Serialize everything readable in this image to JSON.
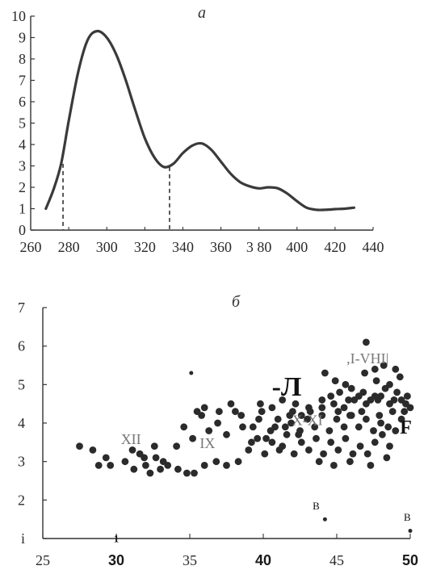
{
  "chart_data": [
    {
      "type": "line",
      "panel_label": "a",
      "xlim": [
        260,
        440
      ],
      "ylim": [
        0,
        10
      ],
      "x_tick_labels": [
        "260",
        "280",
        "300",
        "320",
        "340",
        "360",
        "3 80",
        "400",
        "420",
        "440"
      ],
      "y_tick_labels": [
        "0",
        "1",
        "2",
        "3",
        "4",
        "5",
        "6",
        "7",
        "8",
        "9",
        "10"
      ],
      "x": [
        268,
        272,
        276,
        280,
        285,
        290,
        295,
        300,
        305,
        310,
        315,
        320,
        325,
        330,
        335,
        340,
        345,
        350,
        355,
        360,
        365,
        370,
        375,
        380,
        385,
        390,
        395,
        400,
        405,
        410,
        415,
        420,
        425,
        430
      ],
      "y": [
        1.0,
        1.9,
        3.1,
        5.1,
        7.4,
        8.9,
        9.3,
        9.0,
        8.2,
        7.0,
        5.6,
        4.3,
        3.4,
        2.95,
        3.1,
        3.6,
        3.95,
        4.05,
        3.75,
        3.2,
        2.65,
        2.25,
        2.05,
        1.95,
        2.0,
        1.95,
        1.7,
        1.35,
        1.05,
        0.95,
        0.95,
        0.98,
        1.0,
        1.05
      ],
      "markers": [
        {
          "x": 277,
          "y": 3.1
        },
        {
          "x": 333,
          "y": 2.95
        }
      ]
    },
    {
      "type": "scatter",
      "panel_label": "б",
      "xlim": [
        25,
        50
      ],
      "ylim": [
        1,
        7
      ],
      "x_tick_labels": [
        "25",
        "30",
        "35",
        "40",
        "45",
        "50"
      ],
      "y_tick_labels": [
        "i",
        "2",
        "3",
        "4",
        "5",
        "6",
        "7"
      ],
      "groups": [
        "XII",
        "IX",
        "X-XI",
        ",I-VHI|"
      ],
      "annotations": [
        "-Л",
        "F",
        "В",
        "В",
        "1"
      ],
      "points": [
        [
          27.5,
          3.4
        ],
        [
          28.4,
          3.3
        ],
        [
          28.8,
          2.9
        ],
        [
          29.3,
          3.1
        ],
        [
          29.6,
          2.9
        ],
        [
          30.6,
          3.0
        ],
        [
          31.2,
          2.8
        ],
        [
          31.6,
          3.2
        ],
        [
          32.0,
          2.9
        ],
        [
          32.3,
          2.7
        ],
        [
          32.7,
          3.1
        ],
        [
          33.0,
          2.8
        ],
        [
          33.5,
          2.9
        ],
        [
          34.2,
          2.8
        ],
        [
          34.8,
          2.7
        ],
        [
          35.3,
          2.7
        ],
        [
          36.0,
          2.9
        ],
        [
          36.8,
          3.0
        ],
        [
          37.5,
          2.9
        ],
        [
          38.3,
          3.0
        ],
        [
          31.1,
          3.3
        ],
        [
          31.9,
          3.1
        ],
        [
          32.6,
          3.4
        ],
        [
          33.2,
          3.0
        ],
        [
          34.1,
          3.4
        ],
        [
          34.6,
          3.9
        ],
        [
          35.2,
          3.6
        ],
        [
          35.8,
          4.2
        ],
        [
          36.3,
          3.8
        ],
        [
          36.9,
          4.0
        ],
        [
          37.5,
          3.7
        ],
        [
          38.1,
          4.3
        ],
        [
          38.6,
          3.9
        ],
        [
          39.2,
          3.5
        ],
        [
          39.7,
          4.1
        ],
        [
          40.2,
          3.6
        ],
        [
          40.8,
          3.9
        ],
        [
          41.3,
          3.4
        ],
        [
          41.9,
          4.0
        ],
        [
          42.4,
          3.7
        ],
        [
          39.0,
          3.3
        ],
        [
          39.6,
          3.6
        ],
        [
          40.1,
          3.2
        ],
        [
          40.6,
          3.5
        ],
        [
          41.1,
          3.3
        ],
        [
          41.6,
          3.7
        ],
        [
          42.1,
          3.2
        ],
        [
          42.6,
          3.5
        ],
        [
          43.1,
          3.3
        ],
        [
          43.6,
          3.6
        ],
        [
          44.1,
          3.2
        ],
        [
          44.6,
          3.5
        ],
        [
          45.1,
          3.3
        ],
        [
          45.6,
          3.6
        ],
        [
          46.1,
          3.2
        ],
        [
          46.6,
          3.4
        ],
        [
          47.1,
          3.2
        ],
        [
          47.6,
          3.5
        ],
        [
          48.1,
          3.7
        ],
        [
          48.6,
          3.4
        ],
        [
          39.3,
          3.9
        ],
        [
          39.9,
          4.3
        ],
        [
          40.5,
          3.8
        ],
        [
          41.0,
          4.1
        ],
        [
          41.5,
          3.9
        ],
        [
          42.0,
          4.3
        ],
        [
          42.5,
          3.8
        ],
        [
          43.0,
          4.1
        ],
        [
          43.5,
          3.9
        ],
        [
          44.0,
          4.2
        ],
        [
          44.5,
          3.8
        ],
        [
          45.0,
          4.1
        ],
        [
          45.5,
          3.9
        ],
        [
          46.0,
          4.2
        ],
        [
          46.5,
          3.9
        ],
        [
          47.0,
          4.1
        ],
        [
          47.5,
          3.8
        ],
        [
          48.0,
          4.0
        ],
        [
          48.5,
          3.9
        ],
        [
          49.0,
          3.8
        ],
        [
          35.5,
          4.3
        ],
        [
          36.0,
          4.4
        ],
        [
          37.0,
          4.3
        ],
        [
          37.8,
          4.5
        ],
        [
          38.5,
          4.2
        ],
        [
          39.8,
          4.5
        ],
        [
          40.6,
          4.4
        ],
        [
          41.3,
          4.6
        ],
        [
          42.2,
          4.5
        ],
        [
          43.1,
          4.4
        ],
        [
          44.0,
          4.6
        ],
        [
          44.8,
          4.5
        ],
        [
          45.5,
          4.4
        ],
        [
          46.2,
          4.6
        ],
        [
          47.0,
          4.5
        ],
        [
          47.8,
          4.6
        ],
        [
          48.6,
          4.5
        ],
        [
          49.4,
          4.6
        ],
        [
          45.2,
          4.8
        ],
        [
          46.0,
          4.9
        ],
        [
          46.8,
          4.8
        ],
        [
          47.6,
          4.7
        ],
        [
          48.3,
          4.9
        ],
        [
          49.1,
          4.8
        ],
        [
          49.8,
          4.7
        ],
        [
          44.2,
          5.3
        ],
        [
          44.9,
          5.1
        ],
        [
          45.6,
          5.0
        ],
        [
          46.9,
          5.3
        ],
        [
          47.7,
          5.1
        ],
        [
          48.6,
          5.0
        ],
        [
          49.3,
          5.2
        ],
        [
          49.6,
          4.3
        ],
        [
          50.0,
          4.4
        ],
        [
          49.4,
          4.1
        ],
        [
          48.8,
          4.3
        ],
        [
          47.9,
          4.2
        ],
        [
          46.7,
          4.3
        ],
        [
          45.9,
          4.2
        ],
        [
          45.1,
          4.3
        ],
        [
          44.6,
          4.7
        ],
        [
          45.8,
          4.6
        ],
        [
          46.5,
          4.7
        ],
        [
          47.3,
          4.6
        ],
        [
          48.0,
          4.7
        ],
        [
          48.9,
          4.6
        ],
        [
          49.7,
          4.5
        ],
        [
          47.0,
          6.1
        ],
        [
          47.6,
          5.4
        ],
        [
          48.2,
          5.5
        ],
        [
          49.0,
          5.4
        ],
        [
          44.0,
          4.4
        ],
        [
          43.2,
          4.3
        ],
        [
          42.6,
          4.2
        ],
        [
          41.8,
          4.2
        ],
        [
          43.8,
          3.0
        ],
        [
          44.8,
          2.9
        ],
        [
          45.9,
          3.0
        ],
        [
          47.3,
          2.9
        ],
        [
          48.4,
          3.1
        ],
        [
          44.2,
          1.5
        ],
        [
          50.0,
          1.2
        ],
        [
          35.1,
          5.3
        ]
      ]
    }
  ]
}
